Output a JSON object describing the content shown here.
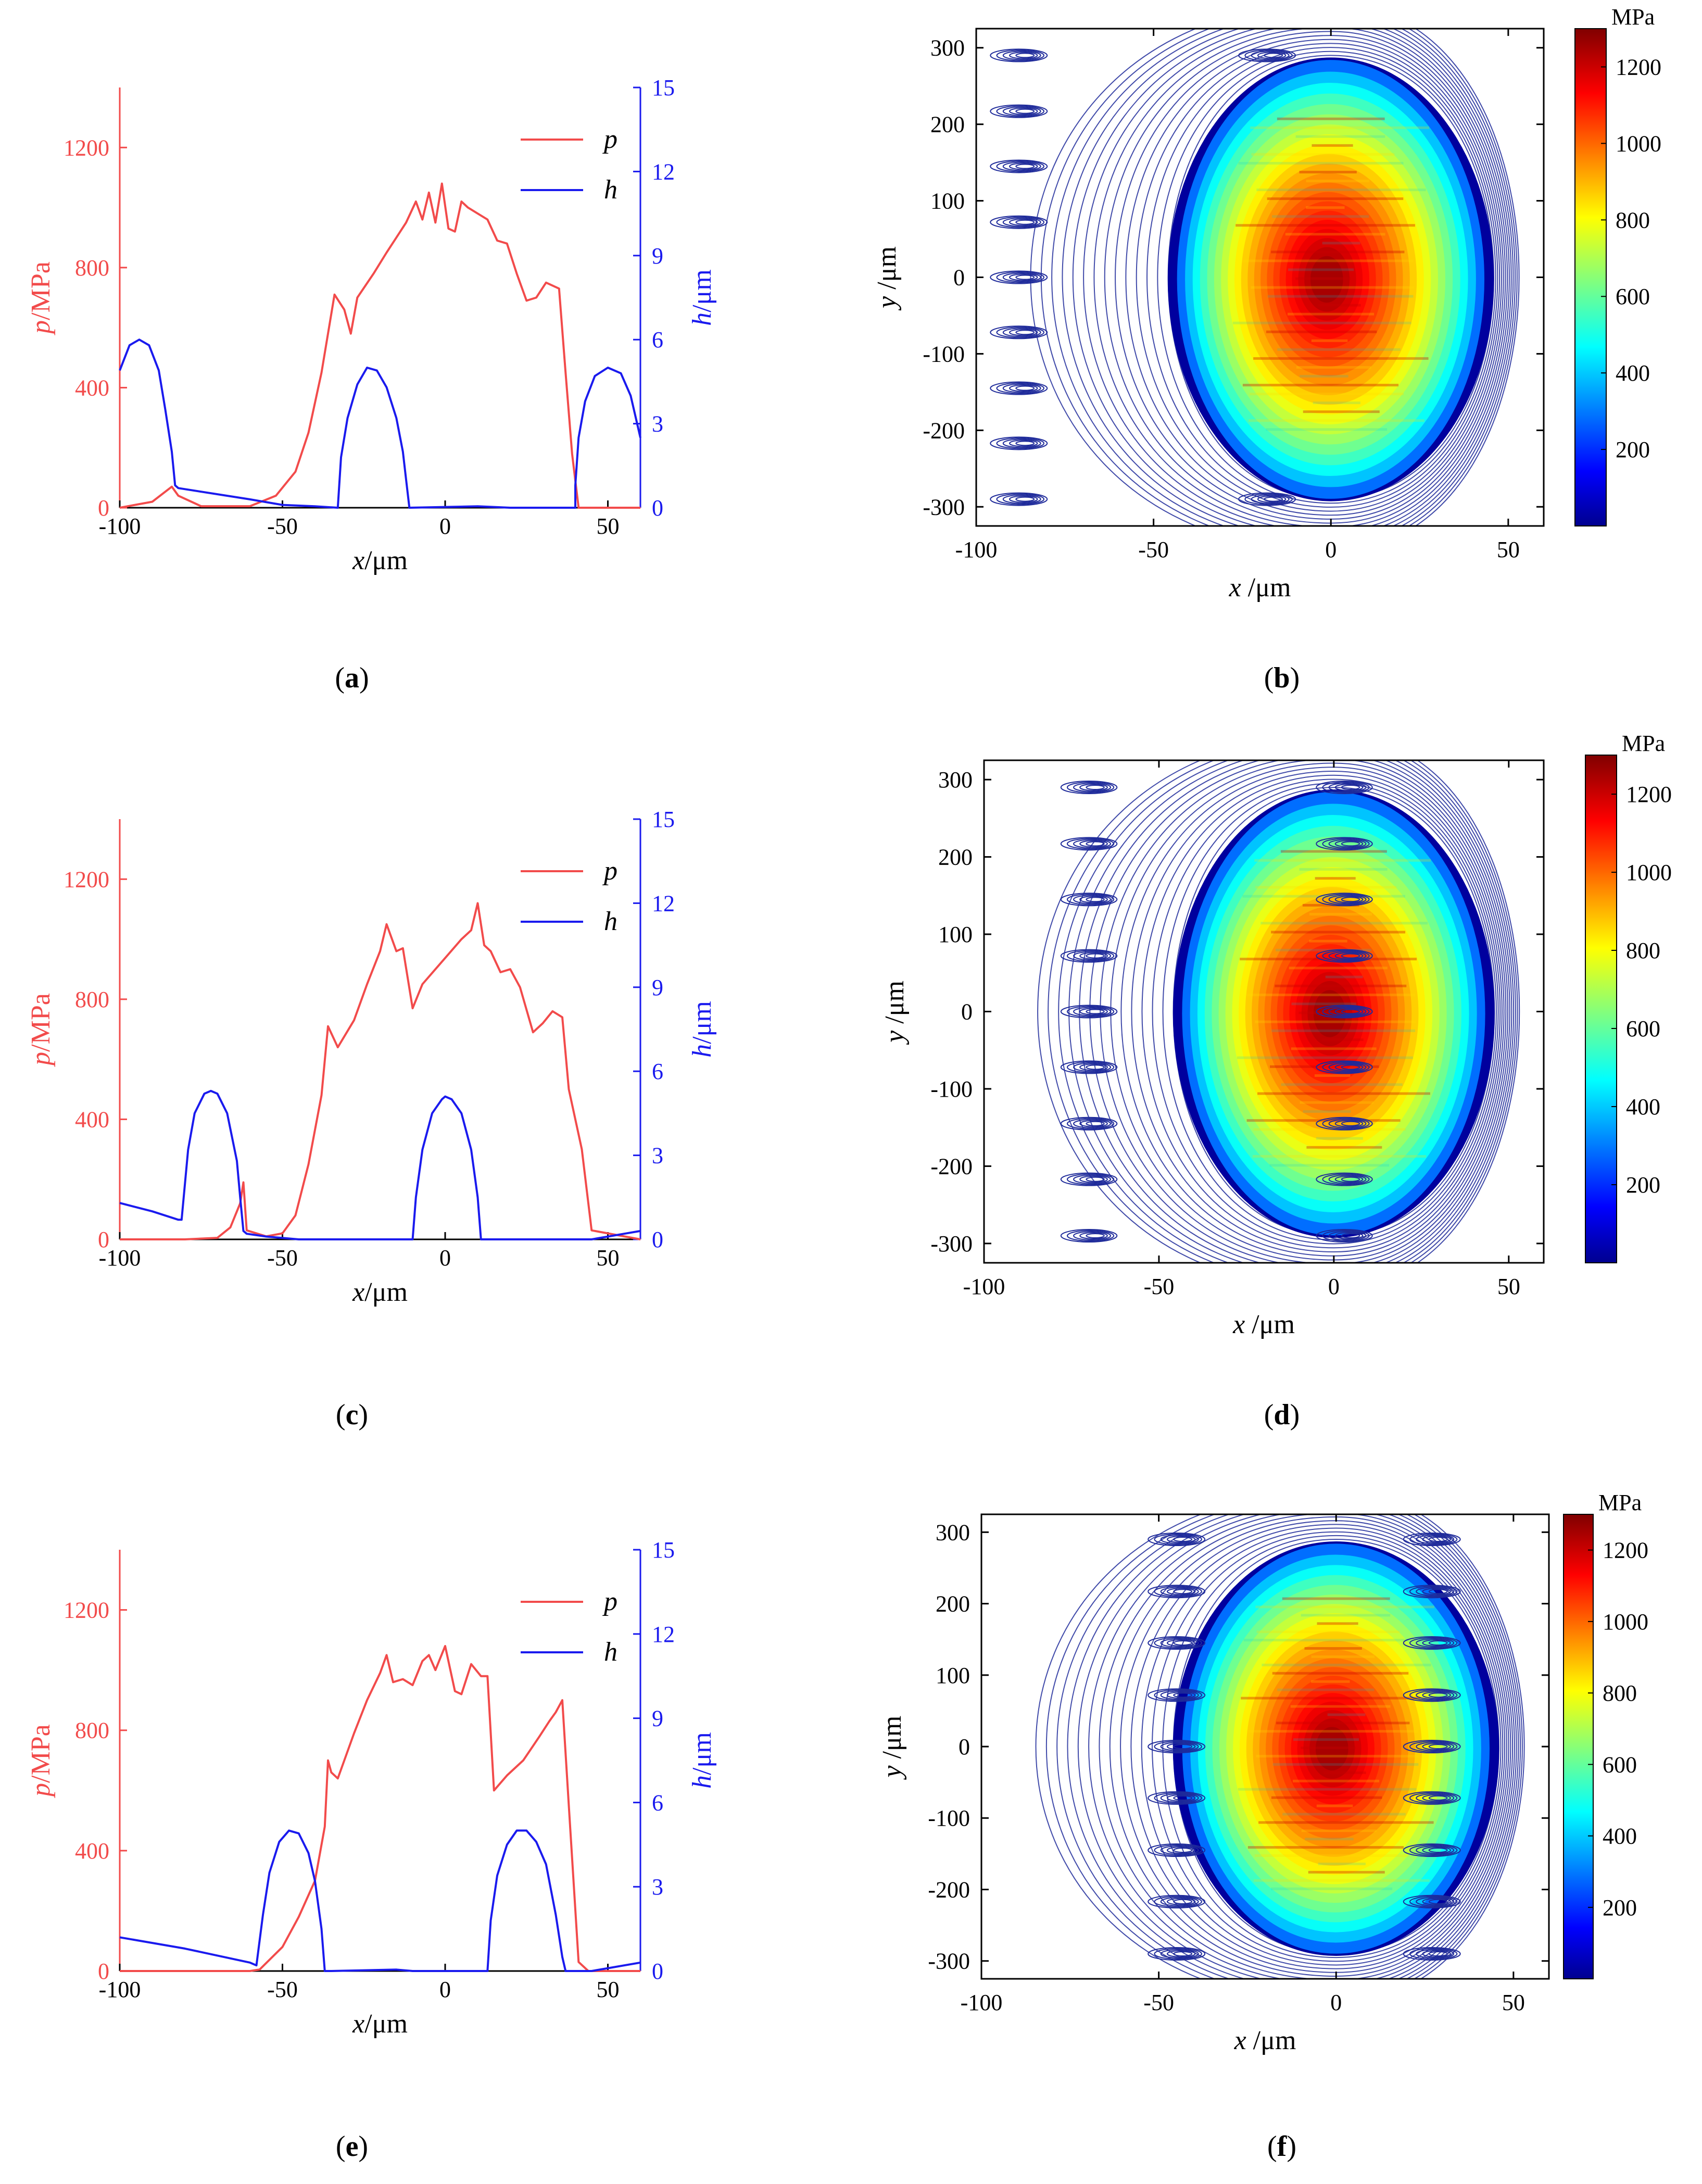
{
  "colors": {
    "pressure": "#f24b4b",
    "thickness": "#1a1aee",
    "axis": "#000000",
    "contour": "#1e2a9a"
  },
  "chart_data": [
    {
      "panel": "a",
      "type": "line",
      "caption": "a",
      "xlabel_var": "x",
      "xlabel_unit": "/μm",
      "ylabel_left_var": "p",
      "ylabel_left_unit": "/MPa",
      "ylabel_right_var": "h",
      "ylabel_right_unit": "/μm",
      "xlim": [
        -100,
        60
      ],
      "ylim_left": [
        0,
        1400
      ],
      "ylim_right": [
        0,
        15
      ],
      "xticks": [
        -100,
        -50,
        0,
        50
      ],
      "yticks_left": [
        0,
        400,
        800,
        1200
      ],
      "yticks_right": [
        0,
        3,
        6,
        9,
        12,
        15
      ],
      "series": [
        {
          "name": "p",
          "axis": "left",
          "x": [
            -100,
            -90,
            -84,
            -82,
            -75,
            -60,
            -52,
            -46,
            -42,
            -38,
            -34,
            -31,
            -29,
            -27,
            -22,
            -18,
            -15,
            -12,
            -9,
            -7,
            -5,
            -3,
            -1,
            1,
            3,
            5,
            7,
            10,
            13,
            16,
            19,
            22,
            25,
            28,
            31,
            33,
            35,
            37,
            39,
            41,
            44,
            60
          ],
          "y": [
            0,
            20,
            70,
            40,
            5,
            5,
            40,
            120,
            250,
            450,
            710,
            660,
            580,
            700,
            780,
            850,
            900,
            950,
            1020,
            960,
            1050,
            950,
            1080,
            930,
            920,
            1020,
            1000,
            980,
            960,
            890,
            880,
            780,
            690,
            700,
            750,
            740,
            730,
            450,
            180,
            0,
            0,
            0
          ]
        },
        {
          "name": "h",
          "axis": "right",
          "x": [
            -100,
            -97,
            -94,
            -91,
            -88,
            -86,
            -84,
            -83,
            -82,
            -60,
            -50,
            -40,
            -33,
            -33,
            -32,
            -30,
            -27,
            -24,
            -21,
            -18,
            -15,
            -13,
            -12,
            -11,
            -11,
            10,
            20,
            38,
            40,
            40,
            41,
            43,
            46,
            50,
            54,
            57,
            60
          ],
          "y": [
            4.9,
            5.8,
            6.0,
            5.8,
            4.9,
            3.5,
            2.0,
            0.8,
            0.7,
            0.3,
            0.1,
            0.05,
            0,
            0,
            1.8,
            3.2,
            4.4,
            5.0,
            4.9,
            4.3,
            3.2,
            2.0,
            1.0,
            0,
            0,
            0.05,
            0,
            0,
            0,
            0.8,
            2.5,
            3.8,
            4.7,
            5.0,
            4.8,
            4.0,
            2.5
          ]
        }
      ]
    },
    {
      "panel": "b",
      "type": "heatmap",
      "caption": "b",
      "xlabel_var": "x",
      "xlabel_unit": " /μm",
      "ylabel_var": "y",
      "ylabel_unit": " /μm",
      "xlim": [
        -100,
        60
      ],
      "ylim": [
        -325,
        325
      ],
      "xticks": [
        -100,
        -50,
        0,
        50
      ],
      "yticks": [
        -300,
        -200,
        -100,
        0,
        100,
        200,
        300
      ],
      "colorbar_unit": "MPa",
      "colorbar_ticks": [
        200,
        400,
        600,
        800,
        1000,
        1200
      ],
      "colorbar_range": [
        0,
        1300
      ],
      "contact": {
        "x_center": 0,
        "x_left": -46,
        "x_right": 46,
        "y_half": 290,
        "peak": 1250
      },
      "dimples": [
        {
          "x": -88,
          "y": -290
        },
        {
          "x": -88,
          "y": -217
        },
        {
          "x": -88,
          "y": -145
        },
        {
          "x": -88,
          "y": -72
        },
        {
          "x": -88,
          "y": 0
        },
        {
          "x": -88,
          "y": 72
        },
        {
          "x": -88,
          "y": 145
        },
        {
          "x": -88,
          "y": 217
        },
        {
          "x": -88,
          "y": 290
        },
        {
          "x": -18,
          "y": 290
        },
        {
          "x": -18,
          "y": -290
        }
      ]
    },
    {
      "panel": "c",
      "type": "line",
      "caption": "c",
      "xlabel_var": "x",
      "xlabel_unit": "/μm",
      "ylabel_left_var": "p",
      "ylabel_left_unit": "/MPa",
      "ylabel_right_var": "h",
      "ylabel_right_unit": "/μm",
      "xlim": [
        -100,
        60
      ],
      "ylim_left": [
        0,
        1400
      ],
      "ylim_right": [
        0,
        15
      ],
      "xticks": [
        -100,
        -50,
        0,
        50
      ],
      "yticks_left": [
        0,
        400,
        800,
        1200
      ],
      "yticks_right": [
        0,
        3,
        6,
        9,
        12,
        15
      ],
      "series": [
        {
          "name": "p",
          "axis": "left",
          "x": [
            -100,
            -80,
            -70,
            -66,
            -63,
            -62,
            -61,
            -55,
            -50,
            -46,
            -42,
            -38,
            -36,
            -33,
            -28,
            -24,
            -20,
            -18,
            -15,
            -13,
            -10,
            -7,
            -3,
            1,
            5,
            8,
            10,
            12,
            14,
            17,
            20,
            23,
            27,
            30,
            33,
            36,
            38,
            42,
            45,
            60
          ],
          "y": [
            0,
            0,
            5,
            40,
            120,
            190,
            30,
            10,
            20,
            80,
            250,
            480,
            710,
            640,
            730,
            850,
            960,
            1050,
            960,
            970,
            770,
            850,
            900,
            950,
            1000,
            1030,
            1120,
            980,
            960,
            890,
            900,
            840,
            690,
            720,
            760,
            740,
            500,
            300,
            30,
            0
          ]
        },
        {
          "name": "h",
          "axis": "right",
          "x": [
            -100,
            -90,
            -82,
            -81,
            -79,
            -77,
            -74,
            -72,
            -70,
            -67,
            -64,
            -63,
            -62,
            -61,
            -55,
            -50,
            -45,
            -10,
            -9,
            -7,
            -4,
            -1,
            0,
            2,
            5,
            8,
            10,
            11,
            15,
            45,
            50,
            55,
            60
          ],
          "y": [
            1.3,
            1.0,
            0.7,
            0.7,
            3.2,
            4.5,
            5.2,
            5.3,
            5.2,
            4.5,
            2.8,
            1.5,
            0.3,
            0.2,
            0.1,
            0.05,
            0,
            0,
            1.5,
            3.2,
            4.5,
            5.0,
            5.1,
            5.0,
            4.5,
            3.2,
            1.5,
            0,
            0,
            0,
            0.1,
            0.2,
            0.3
          ]
        }
      ]
    },
    {
      "panel": "d",
      "type": "heatmap",
      "caption": "d",
      "xlabel_var": "x",
      "xlabel_unit": " /μm",
      "ylabel_var": "y",
      "ylabel_unit": " /μm",
      "xlim": [
        -100,
        60
      ],
      "ylim": [
        -325,
        325
      ],
      "xticks": [
        -100,
        -50,
        0,
        50
      ],
      "yticks": [
        -300,
        -200,
        -100,
        0,
        100,
        200,
        300
      ],
      "colorbar_unit": "MPa",
      "colorbar_ticks": [
        200,
        400,
        600,
        800,
        1000,
        1200
      ],
      "colorbar_range": [
        0,
        1300
      ],
      "contact": {
        "x_center": 0,
        "x_left": -46,
        "x_right": 46,
        "y_half": 290,
        "peak": 1250
      },
      "dimples": [
        {
          "x": -70,
          "y": -290
        },
        {
          "x": -70,
          "y": -217
        },
        {
          "x": -70,
          "y": -145
        },
        {
          "x": -70,
          "y": -72
        },
        {
          "x": -70,
          "y": 0
        },
        {
          "x": -70,
          "y": 72
        },
        {
          "x": -70,
          "y": 145
        },
        {
          "x": -70,
          "y": 217
        },
        {
          "x": -70,
          "y": 290
        },
        {
          "x": 3,
          "y": 290
        },
        {
          "x": 3,
          "y": -290
        },
        {
          "x": 3,
          "y": 217
        },
        {
          "x": 3,
          "y": 145
        },
        {
          "x": 3,
          "y": 72
        },
        {
          "x": 3,
          "y": 0
        },
        {
          "x": 3,
          "y": -72
        },
        {
          "x": 3,
          "y": -145
        },
        {
          "x": 3,
          "y": -217
        }
      ]
    },
    {
      "panel": "e",
      "type": "line",
      "caption": "e",
      "xlabel_var": "x",
      "xlabel_unit": "/μm",
      "ylabel_left_var": "p",
      "ylabel_left_unit": "/MPa",
      "ylabel_right_var": "h",
      "ylabel_right_unit": "/μm",
      "xlim": [
        -100,
        60
      ],
      "ylim_left": [
        0,
        1400
      ],
      "ylim_right": [
        0,
        15
      ],
      "xticks": [
        -100,
        -50,
        0,
        50
      ],
      "yticks_left": [
        0,
        400,
        800,
        1200
      ],
      "yticks_right": [
        0,
        3,
        6,
        9,
        12,
        15
      ],
      "series": [
        {
          "name": "p",
          "axis": "left",
          "x": [
            -100,
            -60,
            -57,
            -50,
            -45,
            -40,
            -37,
            -36,
            -35,
            -33,
            -31,
            -28,
            -24,
            -20,
            -18,
            -16,
            -13,
            -10,
            -7,
            -5,
            -3,
            0,
            3,
            5,
            8,
            11,
            13,
            15,
            19,
            24,
            29,
            32,
            34,
            36,
            38,
            41,
            44,
            60
          ],
          "y": [
            0,
            0,
            5,
            80,
            180,
            300,
            480,
            700,
            660,
            640,
            700,
            790,
            900,
            990,
            1050,
            960,
            970,
            950,
            1030,
            1050,
            1000,
            1080,
            930,
            920,
            1020,
            980,
            980,
            600,
            650,
            700,
            780,
            830,
            860,
            900,
            550,
            30,
            0,
            0
          ]
        },
        {
          "name": "h",
          "axis": "right",
          "x": [
            -100,
            -80,
            -60,
            -58,
            -56,
            -54,
            -51,
            -48,
            -45,
            -42,
            -40,
            -38,
            -37,
            -35,
            -15,
            -10,
            10,
            13,
            14,
            16,
            19,
            22,
            25,
            28,
            31,
            34,
            36,
            37,
            45,
            50,
            55,
            60
          ],
          "y": [
            1.2,
            0.8,
            0.3,
            0.2,
            2.0,
            3.5,
            4.6,
            5.0,
            4.9,
            4.2,
            3.2,
            1.5,
            0,
            0,
            0.05,
            0,
            0,
            0,
            1.8,
            3.4,
            4.5,
            5.0,
            5.0,
            4.6,
            3.8,
            2.0,
            0.5,
            0,
            0,
            0.1,
            0.2,
            0.3
          ]
        }
      ]
    },
    {
      "panel": "f",
      "type": "heatmap",
      "caption": "f",
      "xlabel_var": "x",
      "xlabel_unit": " /μm",
      "ylabel_var": "y",
      "ylabel_unit": " /μm",
      "xlim": [
        -100,
        60
      ],
      "ylim": [
        -325,
        325
      ],
      "xticks": [
        -100,
        -50,
        0,
        50
      ],
      "yticks": [
        -300,
        -200,
        -100,
        0,
        100,
        200,
        300
      ],
      "colorbar_unit": "MPa",
      "colorbar_ticks": [
        200,
        400,
        600,
        800,
        1000,
        1200
      ],
      "colorbar_range": [
        0,
        1300
      ],
      "contact": {
        "x_center": 0,
        "x_left": -46,
        "x_right": 46,
        "y_half": 290,
        "peak": 1250
      },
      "dimples": [
        {
          "x": -45,
          "y": -290
        },
        {
          "x": -45,
          "y": -217
        },
        {
          "x": -45,
          "y": -145
        },
        {
          "x": -45,
          "y": -72
        },
        {
          "x": -45,
          "y": 0
        },
        {
          "x": -45,
          "y": 72
        },
        {
          "x": -45,
          "y": 145
        },
        {
          "x": -45,
          "y": 217
        },
        {
          "x": -45,
          "y": 290
        },
        {
          "x": 27,
          "y": -290
        },
        {
          "x": 27,
          "y": -217
        },
        {
          "x": 27,
          "y": -145
        },
        {
          "x": 27,
          "y": -72
        },
        {
          "x": 27,
          "y": 0
        },
        {
          "x": 27,
          "y": 72
        },
        {
          "x": 27,
          "y": 145
        },
        {
          "x": 27,
          "y": 217
        },
        {
          "x": 27,
          "y": 290
        }
      ]
    }
  ]
}
